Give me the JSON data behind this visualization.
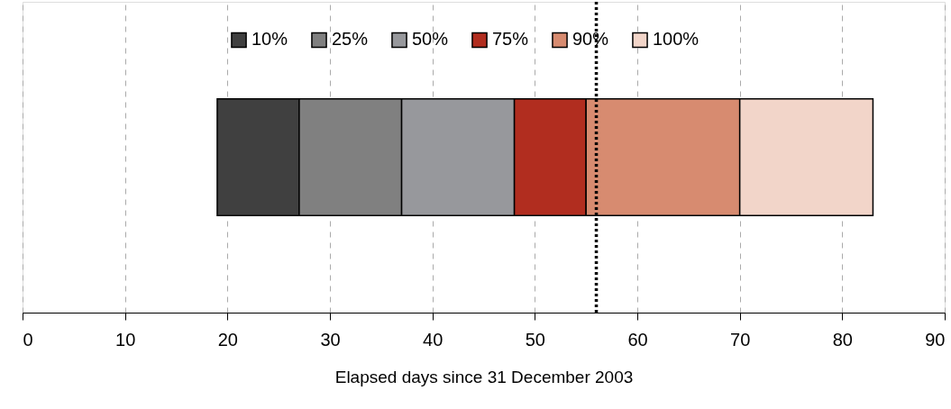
{
  "chart_data": {
    "type": "bar",
    "orientation": "horizontal",
    "categories": [
      null
    ],
    "series": [
      {
        "name": "10%",
        "color": "#404040",
        "base": [
          19
        ],
        "values": [
          8
        ]
      },
      {
        "name": "25%",
        "color": "#808080",
        "base": [
          27
        ],
        "values": [
          10
        ]
      },
      {
        "name": "50%",
        "color": "#97989c",
        "base": [
          37
        ],
        "values": [
          11
        ]
      },
      {
        "name": "75%",
        "color": "#b12d1f",
        "base": [
          48
        ],
        "values": [
          7
        ]
      },
      {
        "name": "90%",
        "color": "#d78b70",
        "base": [
          55
        ],
        "values": [
          15
        ]
      },
      {
        "name": "100%",
        "color": "#f2d5c9",
        "base": [
          70
        ],
        "values": [
          13
        ]
      }
    ],
    "xlabel": "Elapsed days since 31 December 2003",
    "xlim": [
      0,
      90
    ],
    "xticks": [
      0,
      10,
      20,
      30,
      40,
      50,
      60,
      70,
      80,
      90
    ],
    "ref_lines": [
      {
        "axis": "x",
        "value": 56,
        "line_style": "dotted"
      }
    ],
    "grid": "x",
    "legend": "top",
    "tick_labels": "x"
  }
}
